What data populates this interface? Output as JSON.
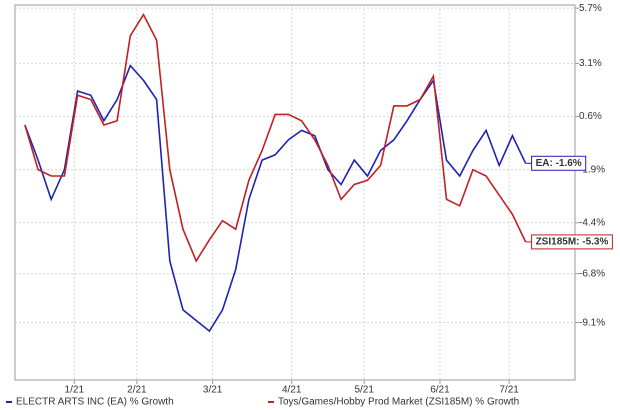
{
  "chart_data": {
    "type": "line",
    "x": [
      0,
      4,
      8,
      12,
      16,
      20,
      24,
      28,
      32,
      36,
      40,
      44,
      48,
      52,
      56,
      60,
      64,
      68,
      72,
      76,
      80,
      84,
      88,
      92,
      96,
      100,
      104,
      108,
      112,
      116,
      120,
      124,
      128,
      132,
      136,
      140,
      144,
      148,
      152
    ],
    "xlim": [
      -3,
      167
    ],
    "xticks": [
      {
        "value": 15,
        "label": "1/21"
      },
      {
        "value": 34,
        "label": "2/21"
      },
      {
        "value": 57,
        "label": "3/21"
      },
      {
        "value": 81,
        "label": "4/21"
      },
      {
        "value": 103,
        "label": "5/21"
      },
      {
        "value": 126,
        "label": "6/21"
      },
      {
        "value": 147,
        "label": "7/21"
      }
    ],
    "ylim": [
      -11.8,
      5.85
    ],
    "yticks": [
      {
        "value": 5.7,
        "label": "5.7%"
      },
      {
        "value": 3.1,
        "label": "3.1%"
      },
      {
        "value": 0.6,
        "label": "0.6%"
      },
      {
        "value": -1.9,
        "label": "-1.9%"
      },
      {
        "value": -4.4,
        "label": "-4.4%"
      },
      {
        "value": -6.8,
        "label": "-6.8%"
      },
      {
        "value": -9.1,
        "label": "-9.1%"
      }
    ],
    "grid": true,
    "legend": "bottom",
    "series": [
      {
        "name": "ELECTR ARTS INC (EA) % Growth",
        "color": "#1f23b3",
        "end_label": "EA: -1.6%",
        "values": [
          0.2,
          -1.45,
          -3.3,
          -1.9,
          1.8,
          1.6,
          0.4,
          1.4,
          3.0,
          2.3,
          1.4,
          -6.2,
          -8.5,
          -9.0,
          -9.5,
          -8.5,
          -6.6,
          -3.3,
          -1.45,
          -1.2,
          -0.5,
          -0.05,
          -0.3,
          -1.9,
          -2.6,
          -1.45,
          -2.2,
          -1.0,
          -0.5,
          0.4,
          1.4,
          2.3,
          -1.45,
          -2.2,
          -1.0,
          -0.05,
          -1.7,
          -0.3,
          -1.6
        ]
      },
      {
        "name": "Toys/Games/Hobby Prod Market (ZSI185M) % Growth",
        "color": "#c3201f",
        "end_label": "ZSI185M: -5.3%",
        "values": [
          0.2,
          -1.9,
          -2.2,
          -2.2,
          1.6,
          1.4,
          0.2,
          0.4,
          4.4,
          5.4,
          4.2,
          -1.9,
          -4.7,
          -6.2,
          -5.2,
          -4.3,
          -4.7,
          -2.4,
          -1.0,
          0.7,
          0.7,
          0.4,
          -0.5,
          -1.7,
          -3.3,
          -2.6,
          -2.4,
          -1.7,
          1.1,
          1.1,
          1.4,
          2.5,
          -3.3,
          -3.6,
          -1.9,
          -2.2,
          -3.1,
          -4.0,
          -5.3
        ]
      }
    ]
  }
}
